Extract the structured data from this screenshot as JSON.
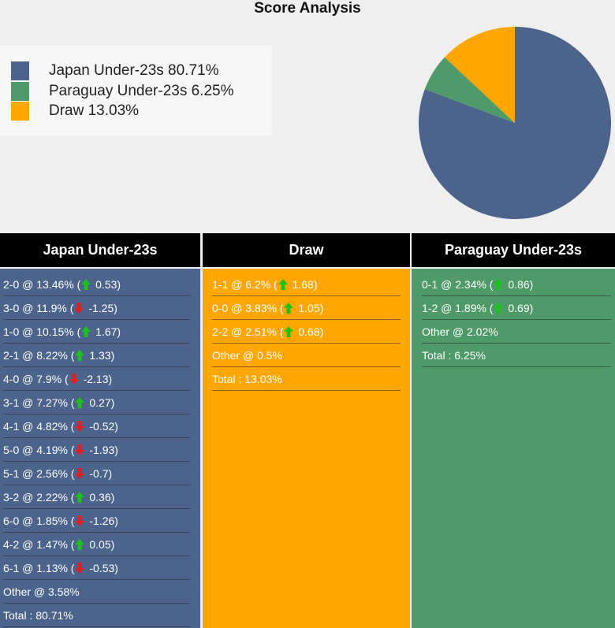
{
  "title": "Score Analysis",
  "colors": {
    "japan": "#4c638c",
    "paraguay": "#4e9a68",
    "draw": "#ffa600",
    "up": "#19c319",
    "down": "#e02020"
  },
  "chart_data": {
    "type": "pie",
    "title": "Score Analysis",
    "legend_position": "top-left",
    "slices": [
      {
        "label": "Japan Under-23s",
        "value": 80.71,
        "color": "#4c638c"
      },
      {
        "label": "Paraguay Under-23s",
        "value": 6.25,
        "color": "#4e9a68"
      },
      {
        "label": "Draw",
        "value": 13.03,
        "color": "#ffa600"
      }
    ]
  },
  "legend": [
    {
      "label": "Japan Under-23s 80.71%",
      "color": "#4c638c"
    },
    {
      "label": "Paraguay Under-23s 6.25%",
      "color": "#4e9a68"
    },
    {
      "label": "Draw 13.03%",
      "color": "#ffa600"
    }
  ],
  "columns": [
    {
      "header": "Japan Under-23s",
      "color": "#4c638c",
      "rows": [
        {
          "text": "2-0 @ 13.46% (",
          "dir": "up",
          "change": " 0.53)"
        },
        {
          "text": "3-0 @ 11.9% (",
          "dir": "down",
          "change": " -1.25)"
        },
        {
          "text": "1-0 @ 10.15% (",
          "dir": "up",
          "change": " 1.67)"
        },
        {
          "text": "2-1 @ 8.22% (",
          "dir": "up",
          "change": " 1.33)"
        },
        {
          "text": "4-0 @ 7.9% (",
          "dir": "down",
          "change": " -2.13)"
        },
        {
          "text": "3-1 @ 7.27% (",
          "dir": "up",
          "change": " 0.27)"
        },
        {
          "text": "4-1 @ 4.82% (",
          "dir": "down",
          "change": " -0.52)"
        },
        {
          "text": "5-0 @ 4.19% (",
          "dir": "down",
          "change": " -1.93)"
        },
        {
          "text": "5-1 @ 2.56% (",
          "dir": "down",
          "change": " -0.7)"
        },
        {
          "text": "3-2 @ 2.22% (",
          "dir": "up",
          "change": " 0.36)"
        },
        {
          "text": "6-0 @ 1.85% (",
          "dir": "down",
          "change": " -1.26)"
        },
        {
          "text": "4-2 @ 1.47% (",
          "dir": "up",
          "change": " 0.05)"
        },
        {
          "text": "6-1 @ 1.13% (",
          "dir": "down",
          "change": " -0.53)"
        },
        {
          "text": "Other @ 3.58%"
        },
        {
          "text": "Total : 80.71%"
        }
      ]
    },
    {
      "header": "Draw",
      "color": "#ffa600",
      "rows": [
        {
          "text": "1-1 @ 6.2% (",
          "dir": "up",
          "change": " 1.68)"
        },
        {
          "text": "0-0 @ 3.83% (",
          "dir": "up",
          "change": " 1.05)"
        },
        {
          "text": "2-2 @ 2.51% (",
          "dir": "up",
          "change": " 0.68)"
        },
        {
          "text": "Other @ 0.5%"
        },
        {
          "text": "Total : 13.03%"
        }
      ]
    },
    {
      "header": "Paraguay Under-23s",
      "color": "#4e9a68",
      "rows": [
        {
          "text": "0-1 @ 2.34% (",
          "dir": "up",
          "change": " 0.86)"
        },
        {
          "text": "1-2 @ 1.89% (",
          "dir": "up",
          "change": " 0.69)"
        },
        {
          "text": "Other @ 2.02%"
        },
        {
          "text": "Total : 6.25%"
        }
      ]
    }
  ]
}
